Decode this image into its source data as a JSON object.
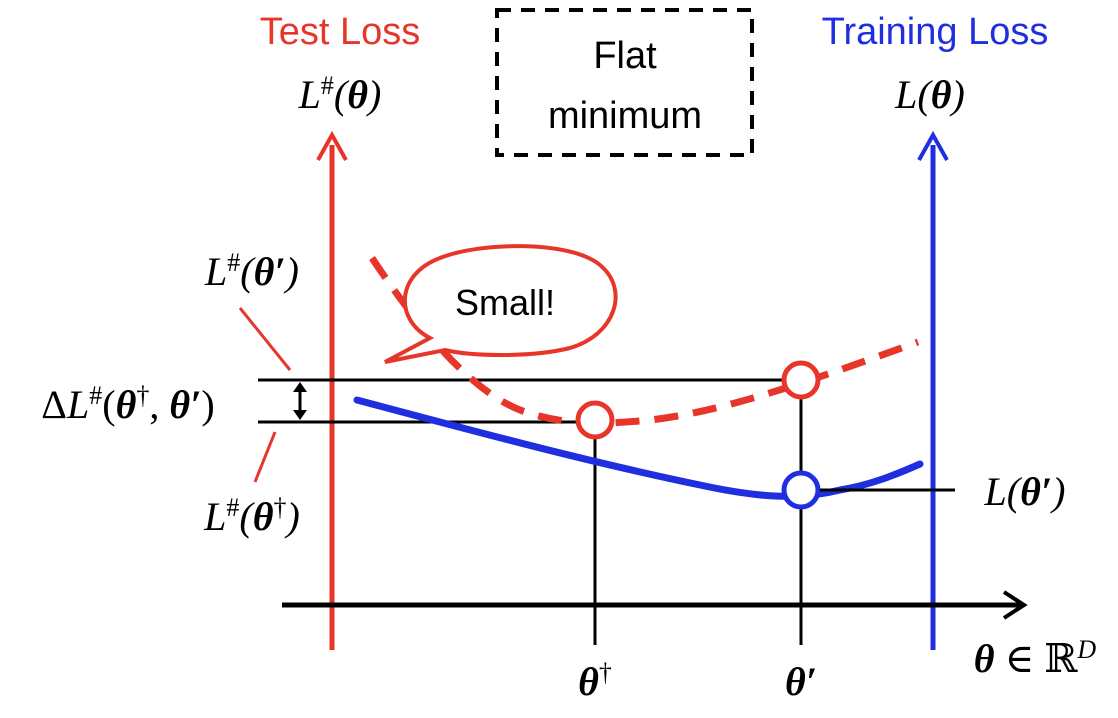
{
  "test_axis": {
    "title": "Test Loss",
    "symbol": "L#(θ)",
    "color": "#e8352a"
  },
  "train_axis": {
    "title": "Training Loss",
    "symbol": "L(θ)",
    "color": "#1f2fe0"
  },
  "box": {
    "line1": "Flat",
    "line2": "minimum"
  },
  "bubble": {
    "text": "Small!"
  },
  "labels": {
    "l_theta_prime_test": "L#(θ′)",
    "delta": "ΔL#(θ†, θ′)",
    "l_theta_dagger_test": "L#(θ†)",
    "l_theta_prime_train": "L(θ′)",
    "theta_dagger": "θ†",
    "theta_prime": "θ′",
    "theta_space": "θ ∈ ℝD"
  },
  "colors": {
    "red": "#e8352a",
    "blue": "#1f2fe0",
    "black": "#000000"
  }
}
